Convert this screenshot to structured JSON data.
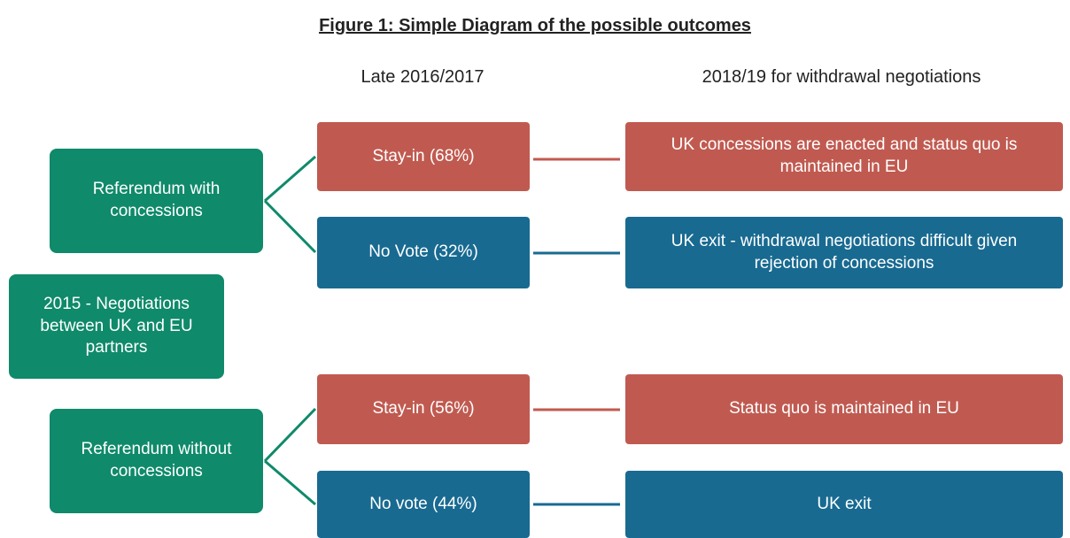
{
  "title": "Figure 1: Simple Diagram of the possible outcomes",
  "column_headers": [
    "Late 2016/2017",
    "2018/19 for withdrawal negotiations"
  ],
  "nodes": [
    {
      "label": "2015 - Negotiations between UK and EU partners"
    },
    {
      "label": "Referendum with concessions"
    },
    {
      "label": "Referendum without concessions"
    },
    {
      "label": "Stay-in (68%)"
    },
    {
      "label": "No Vote (32%)"
    },
    {
      "label": "Stay-in (56%)"
    },
    {
      "label": "No vote (44%)"
    },
    {
      "label": "UK concessions are enacted and status quo is maintained in EU"
    },
    {
      "label": "UK exit - withdrawal negotiations difficult given rejection of concessions"
    },
    {
      "label": "Status quo is maintained in EU"
    },
    {
      "label": "UK exit"
    }
  ]
}
